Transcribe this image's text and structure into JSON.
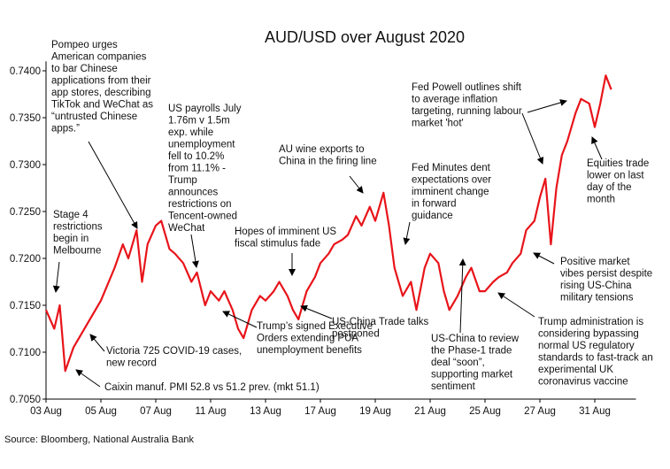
{
  "chart_data": {
    "type": "line",
    "title": "AUD/USD over August 2020",
    "source": "Source: Bloomberg, National Australia Bank",
    "color": "#e8141a",
    "x": [
      0,
      0.3,
      0.5,
      0.7,
      1,
      1.5,
      2,
      2.5,
      2.8,
      3,
      3.3,
      3.5,
      3.7,
      4,
      4.2,
      4.5,
      4.7,
      5,
      5.3,
      5.5,
      5.8,
      6,
      6.3,
      6.5,
      6.8,
      7,
      7.2,
      7.5,
      7.8,
      8,
      8.3,
      8.5,
      8.8,
      9,
      9.2,
      9.5,
      9.8,
      10,
      10.3,
      10.5,
      10.8,
      11,
      11.3,
      11.5,
      11.8,
      12,
      12.3,
      12.5,
      12.7,
      13,
      13.3,
      13.5,
      13.8,
      14,
      14.3,
      14.5,
      14.7,
      15,
      15.3,
      15.5,
      15.8,
      16,
      16.3,
      16.5,
      16.8,
      17,
      17.3,
      17.5,
      17.8,
      18,
      18.2,
      18.4,
      18.6,
      18.8,
      19,
      19.3,
      19.5,
      19.8,
      20,
      20.2,
      20.4,
      20.6
    ],
    "values": [
      0.7145,
      0.7125,
      0.715,
      0.708,
      0.7105,
      0.713,
      0.7155,
      0.719,
      0.7215,
      0.72,
      0.723,
      0.7175,
      0.7215,
      0.7235,
      0.724,
      0.721,
      0.7205,
      0.7195,
      0.7175,
      0.7185,
      0.715,
      0.7165,
      0.7155,
      0.7165,
      0.7145,
      0.7125,
      0.7115,
      0.7145,
      0.716,
      0.7155,
      0.7165,
      0.7175,
      0.716,
      0.7145,
      0.7135,
      0.7165,
      0.718,
      0.7195,
      0.7205,
      0.7215,
      0.722,
      0.7225,
      0.7245,
      0.7235,
      0.7255,
      0.724,
      0.727,
      0.7235,
      0.719,
      0.716,
      0.7175,
      0.7145,
      0.719,
      0.7205,
      0.7195,
      0.7165,
      0.7145,
      0.716,
      0.718,
      0.719,
      0.7165,
      0.7165,
      0.7175,
      0.718,
      0.7185,
      0.7195,
      0.7205,
      0.723,
      0.724,
      0.7265,
      0.7285,
      0.7215,
      0.7275,
      0.731,
      0.7325,
      0.7355,
      0.737,
      0.7365,
      0.734,
      0.7365,
      0.7395,
      0.738
    ],
    "xlim": [
      0,
      21.5
    ],
    "xticks": [
      {
        "value": 0,
        "label": "03 Aug"
      },
      {
        "value": 2,
        "label": "05 Aug"
      },
      {
        "value": 4,
        "label": "07 Aug"
      },
      {
        "value": 6,
        "label": "11 Aug"
      },
      {
        "value": 8,
        "label": "13 Aug"
      },
      {
        "value": 10,
        "label": "17 Aug"
      },
      {
        "value": 12,
        "label": "19 Aug"
      },
      {
        "value": 14,
        "label": "21 Aug"
      },
      {
        "value": 16,
        "label": "25 Aug"
      },
      {
        "value": 18,
        "label": "27 Aug"
      },
      {
        "value": 20,
        "label": "31 Aug"
      }
    ],
    "ylim": [
      0.705,
      0.741
    ],
    "yticks": [
      {
        "value": 0.705,
        "label": "0.7050"
      },
      {
        "value": 0.71,
        "label": "0.7100"
      },
      {
        "value": 0.715,
        "label": "0.7150"
      },
      {
        "value": 0.72,
        "label": "0.7200"
      },
      {
        "value": 0.725,
        "label": "0.7250"
      },
      {
        "value": 0.73,
        "label": "0.7300"
      },
      {
        "value": 0.735,
        "label": "0.7350"
      },
      {
        "value": 0.74,
        "label": "0.7400"
      }
    ],
    "annotations": [
      [
        "Pompeo urges",
        "American companies",
        "to bar Chinese",
        "applications from their",
        "app stores, describing",
        "TikTok and WeChat as",
        "“untrusted Chinese",
        "apps.”"
      ],
      [
        "US payrolls July",
        "1.76m v 1.5m",
        "exp. while",
        "unemployment",
        "fell to 10.2%",
        "from 11.1% -",
        "Trump",
        "announces",
        "restrictions on",
        "Tencent-owned",
        "WeChat"
      ],
      [
        "Stage 4",
        "restrictions",
        "begin in",
        "Melbourne"
      ],
      [
        "Victoria 725 COVID-19 cases,",
        "new record"
      ],
      [
        "Caixin manuf. PMI 52.8 vs 51.2 prev. (mkt 51.1)"
      ],
      [
        "Trump’s signed Executive",
        "Orders extending PUA",
        "unemployment benefits"
      ],
      [
        "Hopes of imminent US",
        "fiscal stimulus fade"
      ],
      [
        "AU wine exports to",
        "China in the firing line"
      ],
      [
        "US-China Trade talks",
        "postponed"
      ],
      [
        "Fed Minutes dent",
        "expectations over",
        "imminent change",
        "in forward",
        "guidance"
      ],
      [
        "US-China to review",
        "the Phase-1 trade",
        "deal “soon”,",
        "supporting market",
        "sentiment"
      ],
      [
        "Fed Powell outlines shift",
        "to average inflation",
        "targeting, running labour",
        "market 'hot'"
      ],
      [
        "Equities trade",
        "lower on last",
        "day of the",
        "month"
      ],
      [
        "Positive market",
        "vibes persist despite",
        "rising US-China",
        "military tensions"
      ],
      [
        "Trump administration is",
        "considering bypassing",
        "normal US regulatory",
        "standards to fast-track an",
        "experimental UK",
        "coronavirus vaccine"
      ]
    ]
  }
}
